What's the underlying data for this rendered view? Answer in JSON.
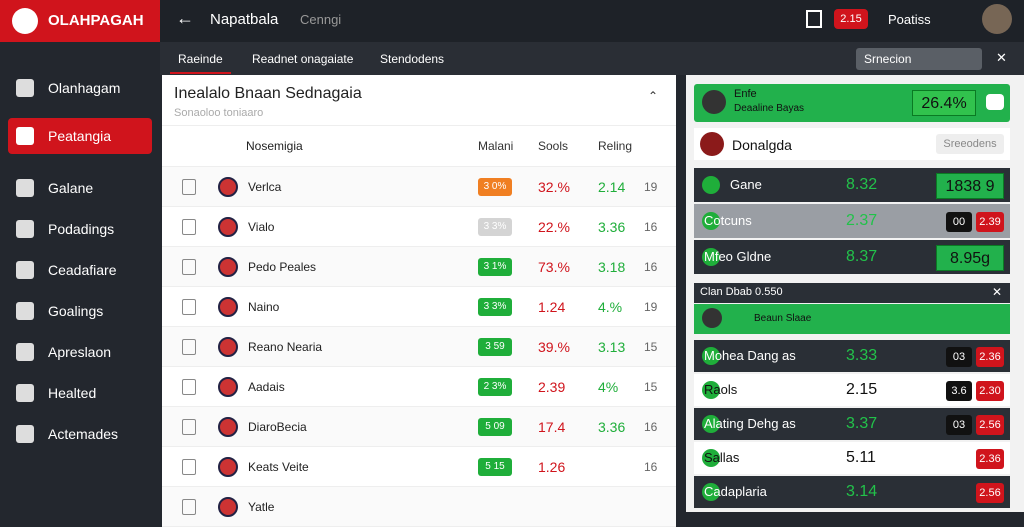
{
  "header": {
    "logo": "OLAHPAGAH",
    "title": "Napatbala",
    "subtitle": "Cenngi",
    "badge": "2.15",
    "user": "Poatiss"
  },
  "sidebar": {
    "items": [
      "Olanhagam",
      "Peatangia",
      "Galane",
      "Podadings",
      "Ceadafiare",
      "Goalings",
      "Apreslaon",
      "Healted",
      "Actemades"
    ],
    "active": 1
  },
  "tabs": {
    "items": [
      "Raeinde",
      "Readnet onagaiate",
      "Stendodens"
    ],
    "active": 0,
    "dropdown": "Srnecion"
  },
  "table": {
    "title": "Inealalo Bnaan Sednagaia",
    "subtitle": "Sonaoloo toniaaro",
    "columns": [
      "Nosemigia",
      "Malani",
      "Sools",
      "Reling"
    ],
    "rows": [
      {
        "name": "Verlca",
        "badge": "3 0%",
        "badge_color": "#f07f22",
        "pct": "32.%",
        "val": "2.14",
        "num": "19"
      },
      {
        "name": "Vialo",
        "badge": "3 3%",
        "badge_color": "#d4d4d4",
        "pct": "22.%",
        "val": "3.36",
        "num": "16"
      },
      {
        "name": "Pedo Peales",
        "badge": "3 1%",
        "badge_color": "#1fae3a",
        "pct": "73.%",
        "val": "3.18",
        "num": "16"
      },
      {
        "name": "Naino",
        "badge": "3 3%",
        "badge_color": "#1fae3a",
        "pct": "1.24",
        "val": "4.%",
        "num": "19"
      },
      {
        "name": "Reano Nearia",
        "badge": "3 59",
        "badge_color": "#1fae3a",
        "pct": "39.%",
        "val": "3.13",
        "num": "15"
      },
      {
        "name": "Aadais",
        "badge": "2 3%",
        "badge_color": "#1fae3a",
        "pct": "2.39",
        "val": "4%",
        "num": "15"
      },
      {
        "name": "DiaroBecia",
        "badge": "5 09",
        "badge_color": "#1fae3a",
        "pct": "17.4",
        "val": "3.36",
        "num": "16"
      },
      {
        "name": "Keats Veite",
        "badge": "5 15",
        "badge_color": "#1fae3a",
        "pct": "1.26",
        "num": "16"
      },
      {
        "name": "Yatle"
      }
    ]
  },
  "side": {
    "card": {
      "name": "Enfe",
      "sub": "Deaaline Bayas",
      "value": "26.4%"
    },
    "team": {
      "name": "Donalgda",
      "button": "Sreeodens"
    },
    "rows": [
      {
        "name": "Gane",
        "value": "8.32",
        "odds": "1838 9"
      },
      {
        "name": "Cotcuns",
        "value": "2.37",
        "a": "00",
        "b": "2.39"
      },
      {
        "name": "Mfeo Gldne",
        "value": "8.37",
        "odds": "8.95g"
      }
    ],
    "panel": {
      "title": "Clan Dbab 0.550",
      "sub": "Beaun Slaae",
      "rows": [
        {
          "name": "Mohea Dang as",
          "value": "3.33",
          "a": "03",
          "b": "2.36"
        },
        {
          "name": "Raols",
          "value": "2.15",
          "a": "3.6",
          "b": "2.30"
        },
        {
          "name": "Alating Dehg as",
          "value": "3.37",
          "a": "03",
          "b": "2.56"
        },
        {
          "name": "Sallas",
          "value": "5.11",
          "b": "2.36"
        },
        {
          "name": "Cadaplaria",
          "value": "3.14",
          "b": "2.56"
        }
      ]
    }
  }
}
